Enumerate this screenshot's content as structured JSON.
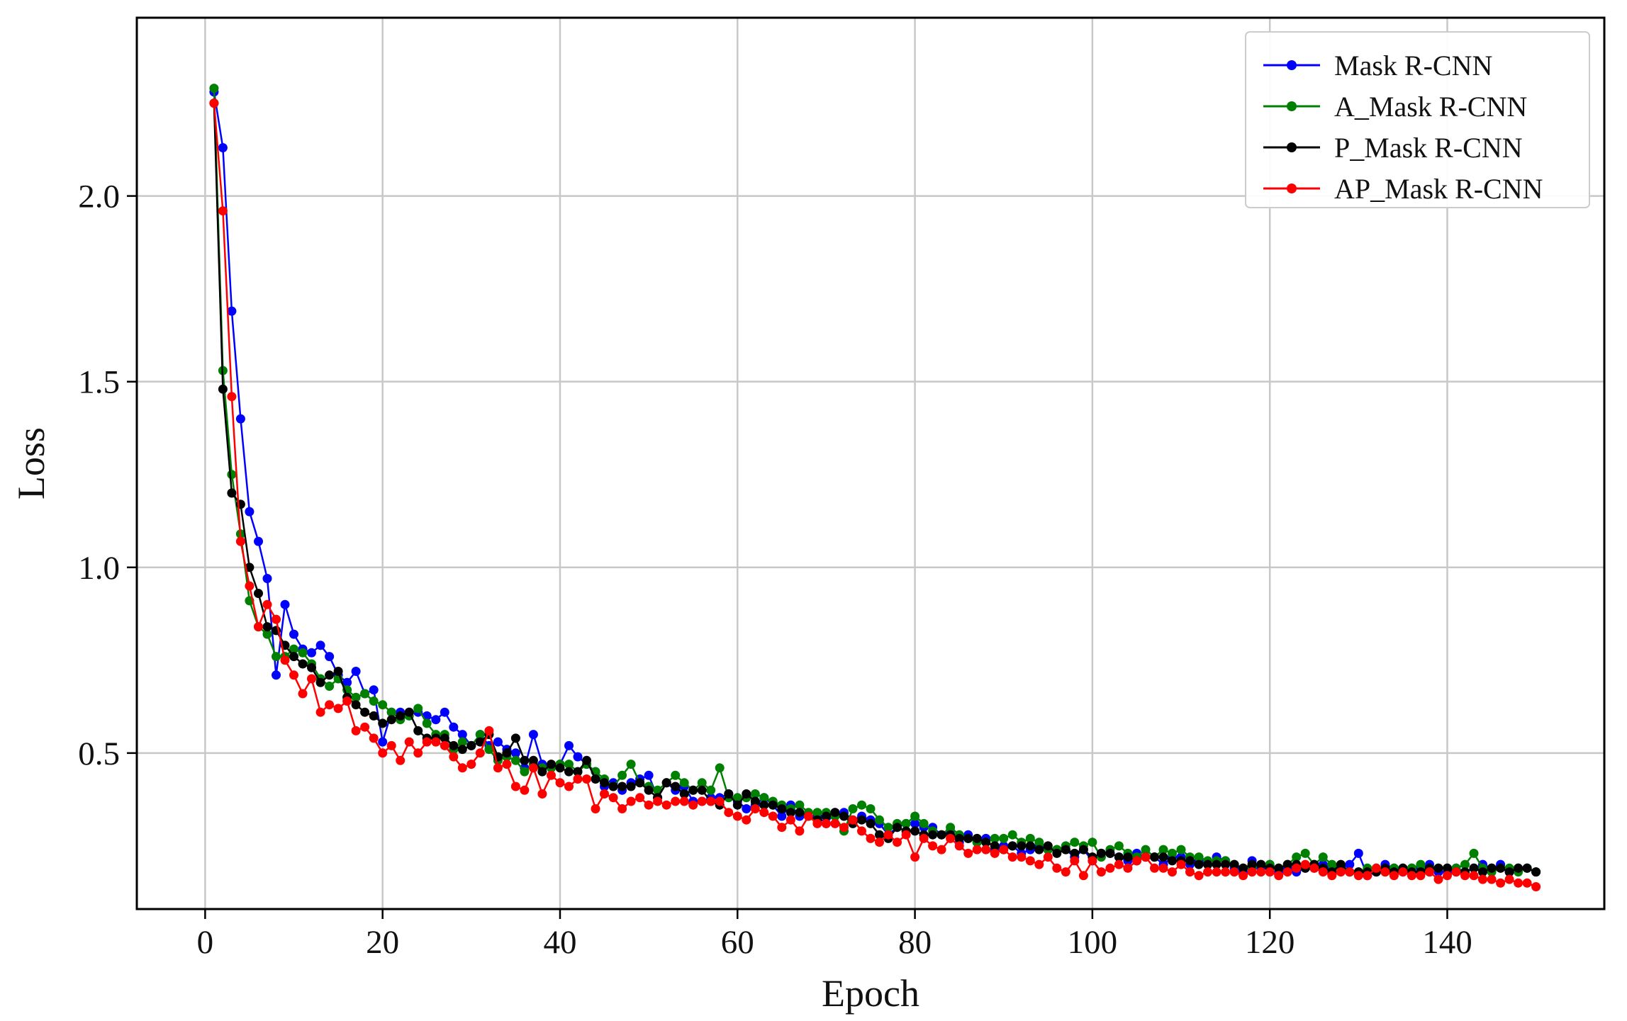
{
  "chart_data": {
    "type": "line",
    "title": "",
    "xlabel": "Epoch",
    "ylabel": "Loss",
    "xlim": [
      -7.7,
      157.7
    ],
    "ylim": [
      0.08,
      2.48
    ],
    "xticks": [
      0,
      20,
      40,
      60,
      80,
      100,
      120,
      140
    ],
    "yticks": [
      0.5,
      1.0,
      1.5,
      2.0
    ],
    "xtick_labels": [
      "0",
      "20",
      "40",
      "60",
      "80",
      "100",
      "120",
      "140"
    ],
    "ytick_labels": [
      "0.5",
      "1.0",
      "1.5",
      "2.0"
    ],
    "grid": true,
    "legend_position": "top-right",
    "x_start": 1,
    "series": [
      {
        "name": "Mask R-CNN",
        "color": "#0000ff",
        "values": [
          2.28,
          2.13,
          1.69,
          1.4,
          1.15,
          1.07,
          0.97,
          0.71,
          0.9,
          0.82,
          0.78,
          0.77,
          0.79,
          0.76,
          0.71,
          0.69,
          0.72,
          0.66,
          0.67,
          0.53,
          0.61,
          0.61,
          0.61,
          0.61,
          0.6,
          0.59,
          0.61,
          0.57,
          0.55,
          0.52,
          0.55,
          0.52,
          0.53,
          0.51,
          0.5,
          0.46,
          0.55,
          0.47,
          0.46,
          0.47,
          0.52,
          0.49,
          0.47,
          0.45,
          0.41,
          0.42,
          0.4,
          0.42,
          0.43,
          0.44,
          0.38,
          0.42,
          0.4,
          0.41,
          0.37,
          0.37,
          0.38,
          0.38,
          0.39,
          0.37,
          0.35,
          0.36,
          0.38,
          0.36,
          0.33,
          0.36,
          0.33,
          0.33,
          0.33,
          0.31,
          0.34,
          0.34,
          0.32,
          0.33,
          0.32,
          0.31,
          0.28,
          0.3,
          0.31,
          0.31,
          0.3,
          0.3,
          0.28,
          0.29,
          0.26,
          0.28,
          0.26,
          0.27,
          0.24,
          0.25,
          0.25,
          0.23,
          0.24,
          0.25,
          0.24,
          0.24,
          0.24,
          0.22,
          0.24,
          0.21,
          0.23,
          0.23,
          0.22,
          0.21,
          0.23,
          0.22,
          0.22,
          0.2,
          0.22,
          0.22,
          0.2,
          0.21,
          0.2,
          0.22,
          0.21,
          0.19,
          0.18,
          0.21,
          0.19,
          0.2,
          0.18,
          0.19,
          0.18,
          0.19,
          0.19,
          0.2,
          0.19,
          0.19,
          0.2,
          0.23,
          0.17,
          0.18,
          0.2,
          0.19,
          0.18,
          0.19,
          0.19,
          0.2,
          0.18,
          0.18,
          0.19,
          0.18,
          0.19,
          0.2,
          0.19,
          0.2,
          0.18,
          0.19,
          0.19,
          0.18
        ]
      },
      {
        "name": "A_Mask R-CNN",
        "color": "#008000",
        "values": [
          2.29,
          1.53,
          1.25,
          1.09,
          0.91,
          0.84,
          0.82,
          0.76,
          0.76,
          0.78,
          0.77,
          0.74,
          0.7,
          0.68,
          0.7,
          0.67,
          0.65,
          0.66,
          0.64,
          0.63,
          0.61,
          0.59,
          0.6,
          0.62,
          0.58,
          0.55,
          0.55,
          0.51,
          0.53,
          0.52,
          0.55,
          0.51,
          0.48,
          0.49,
          0.48,
          0.45,
          0.47,
          0.46,
          0.46,
          0.47,
          0.47,
          0.45,
          0.47,
          0.45,
          0.43,
          0.41,
          0.44,
          0.47,
          0.42,
          0.41,
          0.4,
          0.42,
          0.44,
          0.42,
          0.4,
          0.42,
          0.4,
          0.46,
          0.38,
          0.38,
          0.38,
          0.39,
          0.38,
          0.37,
          0.36,
          0.35,
          0.36,
          0.34,
          0.34,
          0.34,
          0.33,
          0.29,
          0.35,
          0.36,
          0.35,
          0.32,
          0.3,
          0.31,
          0.31,
          0.33,
          0.31,
          0.29,
          0.28,
          0.3,
          0.28,
          0.27,
          0.26,
          0.26,
          0.27,
          0.27,
          0.28,
          0.26,
          0.27,
          0.26,
          0.24,
          0.24,
          0.25,
          0.26,
          0.25,
          0.26,
          0.22,
          0.24,
          0.25,
          0.23,
          0.22,
          0.24,
          0.22,
          0.24,
          0.23,
          0.24,
          0.22,
          0.22,
          0.21,
          0.21,
          0.21,
          0.2,
          0.19,
          0.19,
          0.2,
          0.2,
          0.19,
          0.2,
          0.22,
          0.23,
          0.2,
          0.22,
          0.2,
          0.19,
          0.18,
          0.18,
          0.19,
          0.19,
          0.18,
          0.19,
          0.19,
          0.19,
          0.2,
          0.18,
          0.19,
          0.19,
          0.19,
          0.2,
          0.23,
          0.19,
          0.18,
          0.19,
          0.19,
          0.18,
          0.19,
          0.18
        ]
      },
      {
        "name": "P_Mask R-CNN",
        "color": "#000000",
        "values": [
          2.25,
          1.48,
          1.2,
          1.17,
          1.0,
          0.93,
          0.84,
          0.83,
          0.79,
          0.76,
          0.74,
          0.73,
          0.69,
          0.71,
          0.72,
          0.65,
          0.63,
          0.61,
          0.6,
          0.58,
          0.59,
          0.6,
          0.61,
          0.56,
          0.54,
          0.54,
          0.54,
          0.52,
          0.51,
          0.52,
          0.53,
          0.55,
          0.49,
          0.5,
          0.54,
          0.48,
          0.48,
          0.45,
          0.47,
          0.46,
          0.45,
          0.45,
          0.48,
          0.43,
          0.42,
          0.41,
          0.41,
          0.41,
          0.42,
          0.4,
          0.38,
          0.42,
          0.41,
          0.39,
          0.4,
          0.4,
          0.37,
          0.36,
          0.39,
          0.36,
          0.39,
          0.37,
          0.36,
          0.36,
          0.35,
          0.34,
          0.34,
          0.33,
          0.32,
          0.33,
          0.34,
          0.33,
          0.31,
          0.32,
          0.31,
          0.28,
          0.27,
          0.3,
          0.29,
          0.29,
          0.28,
          0.28,
          0.28,
          0.28,
          0.27,
          0.27,
          0.27,
          0.26,
          0.25,
          0.24,
          0.25,
          0.25,
          0.25,
          0.24,
          0.25,
          0.23,
          0.24,
          0.23,
          0.24,
          0.22,
          0.23,
          0.23,
          0.22,
          0.22,
          0.21,
          0.22,
          0.22,
          0.22,
          0.21,
          0.21,
          0.21,
          0.2,
          0.2,
          0.2,
          0.2,
          0.2,
          0.19,
          0.2,
          0.2,
          0.19,
          0.19,
          0.2,
          0.2,
          0.19,
          0.2,
          0.19,
          0.18,
          0.2,
          0.18,
          0.18,
          0.18,
          0.18,
          0.19,
          0.18,
          0.19,
          0.18,
          0.18,
          0.19,
          0.19,
          0.19,
          0.18,
          0.18,
          0.19,
          0.18,
          0.19,
          0.19,
          0.18,
          0.19,
          0.19,
          0.18
        ]
      },
      {
        "name": "AP_Mask R-CNN",
        "color": "#ff0000",
        "values": [
          2.25,
          1.96,
          1.46,
          1.07,
          0.95,
          0.84,
          0.9,
          0.86,
          0.75,
          0.71,
          0.66,
          0.7,
          0.61,
          0.63,
          0.62,
          0.64,
          0.56,
          0.57,
          0.54,
          0.5,
          0.52,
          0.48,
          0.53,
          0.5,
          0.53,
          0.53,
          0.52,
          0.49,
          0.46,
          0.47,
          0.5,
          0.56,
          0.46,
          0.47,
          0.41,
          0.4,
          0.46,
          0.39,
          0.44,
          0.42,
          0.41,
          0.43,
          0.43,
          0.35,
          0.39,
          0.38,
          0.35,
          0.37,
          0.38,
          0.36,
          0.37,
          0.36,
          0.37,
          0.37,
          0.36,
          0.37,
          0.37,
          0.37,
          0.34,
          0.33,
          0.32,
          0.35,
          0.34,
          0.33,
          0.3,
          0.32,
          0.29,
          0.33,
          0.31,
          0.31,
          0.31,
          0.3,
          0.32,
          0.29,
          0.27,
          0.26,
          0.28,
          0.26,
          0.28,
          0.22,
          0.27,
          0.25,
          0.24,
          0.27,
          0.25,
          0.23,
          0.24,
          0.24,
          0.23,
          0.24,
          0.22,
          0.22,
          0.21,
          0.2,
          0.22,
          0.19,
          0.18,
          0.21,
          0.17,
          0.21,
          0.18,
          0.19,
          0.2,
          0.19,
          0.21,
          0.22,
          0.19,
          0.19,
          0.18,
          0.2,
          0.18,
          0.17,
          0.18,
          0.18,
          0.18,
          0.18,
          0.17,
          0.18,
          0.18,
          0.18,
          0.17,
          0.18,
          0.19,
          0.2,
          0.19,
          0.18,
          0.17,
          0.18,
          0.18,
          0.17,
          0.17,
          0.19,
          0.18,
          0.17,
          0.18,
          0.17,
          0.17,
          0.18,
          0.16,
          0.17,
          0.18,
          0.17,
          0.17,
          0.16,
          0.16,
          0.15,
          0.16,
          0.15,
          0.15,
          0.14
        ]
      }
    ]
  }
}
